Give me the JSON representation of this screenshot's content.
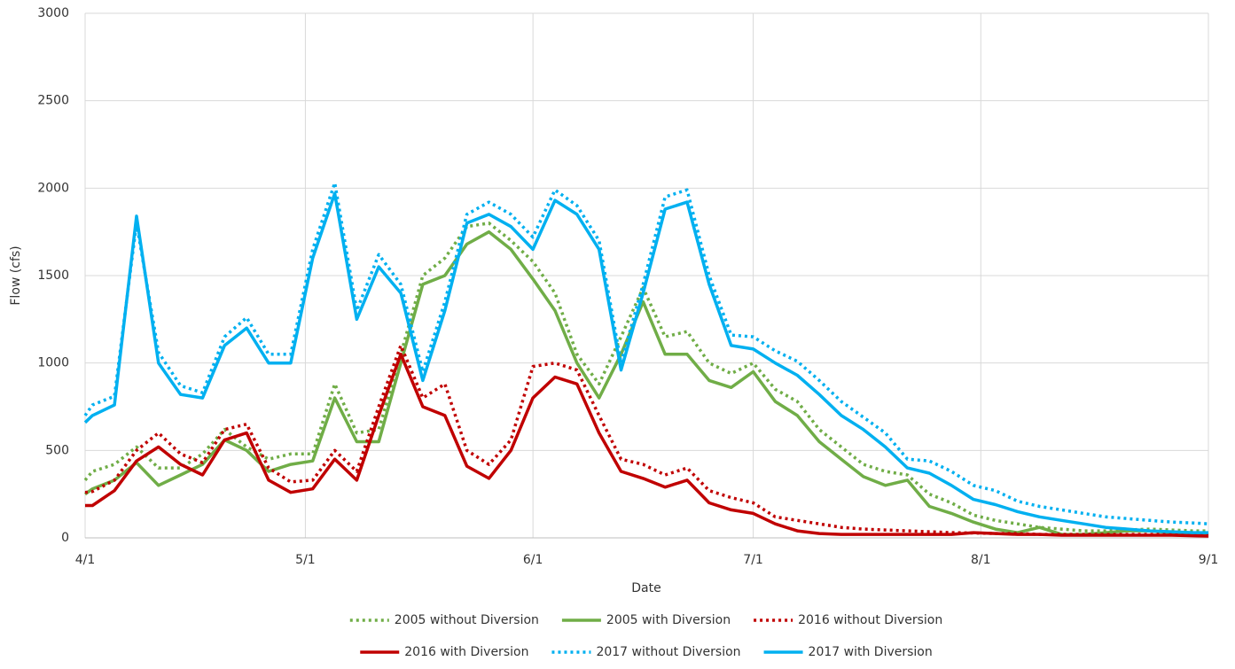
{
  "chart_data": {
    "type": "line",
    "x_label": "Date",
    "y_label": "Flow (cfs)",
    "x": [
      0,
      1,
      4,
      7,
      10,
      13,
      16,
      19,
      22,
      25,
      28,
      31,
      34,
      37,
      40,
      43,
      46,
      49,
      52,
      55,
      58,
      61,
      64,
      67,
      70,
      73,
      76,
      79,
      82,
      85,
      88,
      91,
      94,
      97,
      100,
      103,
      106,
      109,
      112,
      115,
      118,
      121,
      124,
      127,
      130,
      133,
      136,
      139,
      142,
      145,
      148,
      151,
      153
    ],
    "xlim": [
      0,
      153
    ],
    "xticks": [
      {
        "value": 0,
        "label": "4/1"
      },
      {
        "value": 30,
        "label": "5/1"
      },
      {
        "value": 61,
        "label": "6/1"
      },
      {
        "value": 91,
        "label": "7/1"
      },
      {
        "value": 122,
        "label": "8/1"
      },
      {
        "value": 153,
        "label": "9/1"
      }
    ],
    "ylim": [
      0,
      3000
    ],
    "yticks": [
      0,
      500,
      1000,
      1500,
      2000,
      2500,
      3000
    ],
    "grid": true,
    "legend_position": "bottom",
    "series": [
      {
        "name": "2005 without Diversion",
        "color": "#70ad47",
        "dashed": true,
        "values": [
          330,
          380,
          420,
          520,
          400,
          400,
          480,
          620,
          520,
          450,
          480,
          480,
          880,
          600,
          620,
          1050,
          1500,
          1600,
          1780,
          1800,
          1700,
          1580,
          1400,
          1050,
          880,
          1150,
          1430,
          1150,
          1180,
          1000,
          940,
          1000,
          850,
          780,
          620,
          520,
          420,
          380,
          360,
          250,
          200,
          130,
          100,
          80,
          60,
          50,
          40,
          40,
          45,
          50,
          45,
          40,
          40
        ]
      },
      {
        "name": "2005 with Diversion",
        "color": "#70ad47",
        "dashed": false,
        "values": [
          250,
          280,
          330,
          430,
          300,
          360,
          420,
          560,
          500,
          380,
          420,
          440,
          800,
          550,
          550,
          1000,
          1450,
          1500,
          1680,
          1750,
          1650,
          1480,
          1300,
          1000,
          800,
          1050,
          1350,
          1050,
          1050,
          900,
          860,
          950,
          780,
          700,
          550,
          450,
          350,
          300,
          330,
          180,
          140,
          90,
          50,
          30,
          60,
          20,
          20,
          30,
          40,
          40,
          30,
          25,
          25
        ]
      },
      {
        "name": "2016 without Diversion",
        "color": "#c00000",
        "dashed": true,
        "values": [
          260,
          265,
          330,
          500,
          600,
          480,
          430,
          620,
          650,
          400,
          320,
          330,
          500,
          380,
          750,
          1100,
          800,
          880,
          500,
          420,
          560,
          980,
          1000,
          960,
          700,
          450,
          420,
          360,
          400,
          270,
          230,
          200,
          120,
          100,
          80,
          60,
          50,
          45,
          40,
          35,
          30,
          28,
          25,
          25,
          20,
          20,
          20,
          20,
          20,
          20,
          20,
          18,
          15
        ]
      },
      {
        "name": "2016 with Diversion",
        "color": "#c00000",
        "dashed": false,
        "values": [
          185,
          185,
          270,
          440,
          520,
          420,
          360,
          560,
          600,
          330,
          260,
          280,
          450,
          330,
          700,
          1050,
          750,
          700,
          410,
          340,
          500,
          800,
          920,
          880,
          600,
          380,
          340,
          290,
          330,
          200,
          160,
          140,
          80,
          40,
          25,
          20,
          20,
          20,
          20,
          20,
          20,
          30,
          25,
          20,
          20,
          15,
          15,
          15,
          15,
          15,
          15,
          12,
          10
        ]
      },
      {
        "name": "2017 without Diversion",
        "color": "#00b0f0",
        "dashed": true,
        "values": [
          700,
          760,
          810,
          1800,
          1060,
          870,
          830,
          1150,
          1260,
          1050,
          1050,
          1650,
          2030,
          1300,
          1620,
          1450,
          950,
          1350,
          1850,
          1920,
          1850,
          1720,
          1990,
          1900,
          1700,
          1000,
          1450,
          1950,
          1990,
          1500,
          1160,
          1150,
          1070,
          1010,
          900,
          780,
          690,
          600,
          450,
          440,
          380,
          300,
          270,
          210,
          180,
          160,
          140,
          120,
          110,
          100,
          90,
          85,
          80
        ]
      },
      {
        "name": "2017 with Diversion",
        "color": "#00b0f0",
        "dashed": false,
        "values": [
          660,
          700,
          760,
          1840,
          1000,
          820,
          800,
          1100,
          1200,
          1000,
          1000,
          1600,
          1970,
          1250,
          1550,
          1400,
          900,
          1300,
          1800,
          1850,
          1780,
          1650,
          1930,
          1850,
          1650,
          960,
          1400,
          1880,
          1920,
          1450,
          1100,
          1080,
          1000,
          930,
          820,
          700,
          620,
          520,
          400,
          370,
          300,
          220,
          190,
          150,
          120,
          100,
          80,
          60,
          50,
          40,
          35,
          30,
          30
        ]
      }
    ]
  }
}
